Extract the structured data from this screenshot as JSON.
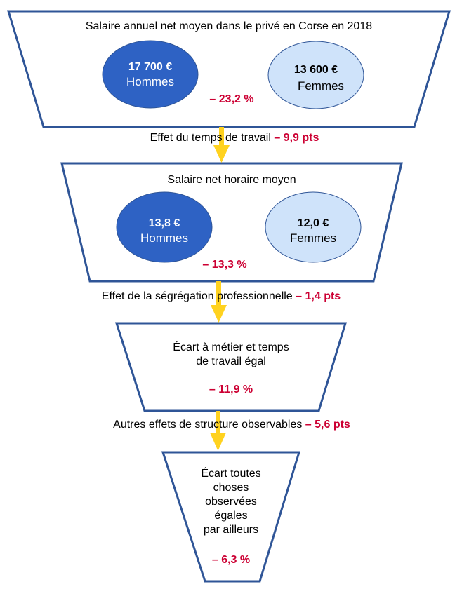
{
  "colors": {
    "funnel_stroke": "#2f5597",
    "circle_men": "#2e62c4",
    "circle_women": "#cfe3fa",
    "arrow": "#ffd21f",
    "accent_red": "#cc0033"
  },
  "level1": {
    "title": "Salaire annuel net moyen dans le privé en Corse en 2018",
    "men": {
      "value": "17 700 €",
      "label": "Hommes"
    },
    "women": {
      "value": "13 600 €",
      "label": "Femmes"
    },
    "gap": "– 23,2 %"
  },
  "effect1": {
    "text": "Effet du temps de travail",
    "value": "– 9,9 pts"
  },
  "level2": {
    "title": "Salaire net horaire moyen",
    "men": {
      "value": "13,8 €",
      "label": "Hommes"
    },
    "women": {
      "value": "12,0 €",
      "label": "Femmes"
    },
    "gap": "– 13,3 %"
  },
  "effect2": {
    "text": "Effet de la ségrégation professionnelle",
    "value": "– 1,4 pts"
  },
  "level3": {
    "title_line1": "Écart à métier et temps",
    "title_line2": "de travail égal",
    "gap": "– 11,9 %"
  },
  "effect3": {
    "text": "Autres effets de structure observables",
    "value": "– 5,6 pts"
  },
  "level4": {
    "lines": [
      "Écart toutes",
      "choses",
      "observées",
      "égales",
      "par ailleurs"
    ],
    "gap": "– 6,3 %"
  }
}
